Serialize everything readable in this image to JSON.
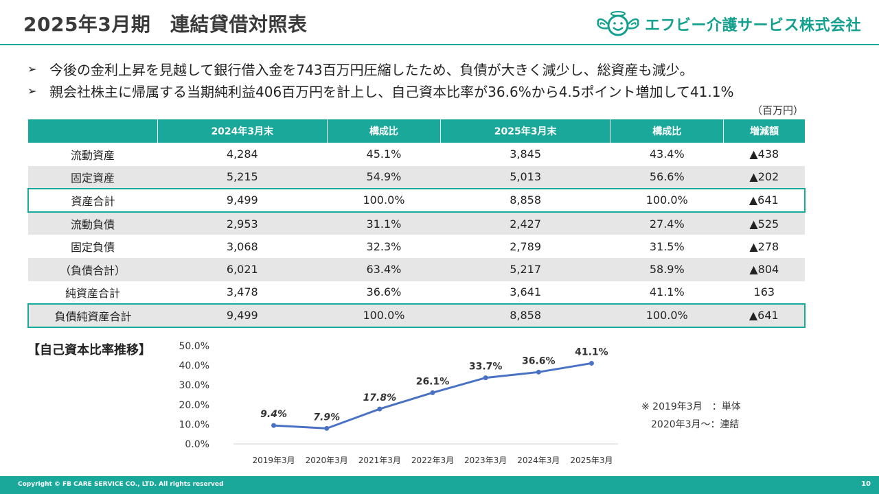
{
  "header": {
    "title": "2025年3月期　連結貸借対照表",
    "company_name": "エフビー介護サービス株式会社"
  },
  "bullets": [
    "今後の金利上昇を見越して銀行借入金を743百万円圧縮したため、負債が大きく減少し、総資産も減少。",
    "親会社株主に帰属する当期純利益406百万円を計上し、自己資本比率が36.6%から4.5ポイント増加して41.1%"
  ],
  "bullet_marker": "➢",
  "table": {
    "unit": "（百万円）",
    "headers": [
      "",
      "2024年3月末",
      "構成比",
      "2025年3月末",
      "構成比",
      "増減額"
    ],
    "rows": [
      [
        "流動資産",
        "4,284",
        "45.1%",
        "3,845",
        "43.4%",
        "▲438"
      ],
      [
        "固定資産",
        "5,215",
        "54.9%",
        "5,013",
        "56.6%",
        "▲202"
      ],
      [
        "資産合計",
        "9,499",
        "100.0%",
        "8,858",
        "100.0%",
        "▲641"
      ],
      [
        "流動負債",
        "2,953",
        "31.1%",
        "2,427",
        "27.4%",
        "▲525"
      ],
      [
        "固定負債",
        "3,068",
        "32.3%",
        "2,789",
        "31.5%",
        "▲278"
      ],
      [
        "（負債合計）",
        "6,021",
        "63.4%",
        "5,217",
        "58.9%",
        "▲804"
      ],
      [
        "純資産合計",
        "3,478",
        "36.6%",
        "3,641",
        "41.1%",
        "163"
      ],
      [
        "負債純資産合計",
        "9,499",
        "100.0%",
        "8,858",
        "100.0%",
        "▲641"
      ]
    ]
  },
  "chart_section_label": "【自己資本比率推移】",
  "chart_data": {
    "type": "line",
    "title": "",
    "xlabel": "",
    "ylabel": "",
    "categories": [
      "2019年3月",
      "2020年3月",
      "2021年3月",
      "2022年3月",
      "2023年3月",
      "2024年3月",
      "2025年3月"
    ],
    "series": [
      {
        "values": [
          9.4,
          7.9,
          17.8,
          26.1,
          33.7,
          36.6,
          41.1
        ],
        "labels": [
          "9.4%",
          "7.9%",
          "17.8%",
          "26.1%",
          "33.7%",
          "36.6%",
          "41.1%"
        ]
      }
    ],
    "italic_labels": [
      true,
      true,
      true,
      false,
      false,
      false,
      false
    ],
    "ylim": [
      0,
      50
    ],
    "yticks": [
      "0.0%",
      "10.0%",
      "20.0%",
      "30.0%",
      "40.0%",
      "50.0%"
    ],
    "grid": false,
    "line_color": "#4a72c4"
  },
  "note": {
    "line1": "※ 2019年3月　：単体",
    "line2": "　2020年3月～：連結"
  },
  "footer": {
    "copyright": "Copyright © FB CARE SERVICE CO., LTD. All rights reserved",
    "page": "10"
  },
  "colors": {
    "accent": "#1aa89a",
    "row_shade": "#e6e6e6"
  }
}
